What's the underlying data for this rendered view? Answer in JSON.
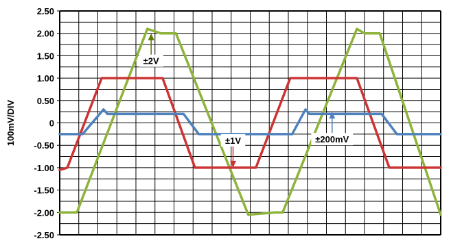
{
  "chart_data": {
    "type": "line",
    "title": "",
    "xlabel": "",
    "ylabel": "100mV/DIV",
    "ylim": [
      -2.5,
      2.5
    ],
    "y_ticks": [
      "2.50",
      "2.00",
      "1.50",
      "1.00",
      "0.50",
      "0",
      "-0.50",
      "-1.00",
      "-1.50",
      "-2.00",
      "-2.50"
    ],
    "x_divisions": 20,
    "xlim": [
      0,
      20
    ],
    "grid": true,
    "series": [
      {
        "color": "#8db33a",
        "x": [
          0,
          0.5,
          0.9,
          4.6,
          5.3,
          6.1,
          9.9,
          11.3,
          11.7,
          15.6,
          16.0,
          16.4,
          16.8,
          20
        ],
        "y": [
          -2.0,
          -2.0,
          -2.0,
          2.1,
          2.0,
          2.0,
          -2.05,
          -2.0,
          -2.0,
          2.1,
          2.0,
          2.0,
          2.0,
          -2.05
        ]
      },
      {
        "color": "#cc3333",
        "x": [
          0,
          0.4,
          2.2,
          5.4,
          7.1,
          10.3,
          12.1,
          15.6,
          17.3,
          20
        ],
        "y": [
          -1.05,
          -1.0,
          1.0,
          1.0,
          -1.0,
          -1.0,
          1.0,
          1.0,
          -1.0,
          -1.0
        ]
      },
      {
        "color": "#4f81bd",
        "x": [
          0,
          1.2,
          2.3,
          2.5,
          6.5,
          7.3,
          12.2,
          12.9,
          13.1,
          16.9,
          17.7,
          20
        ],
        "y": [
          -0.25,
          -0.25,
          0.3,
          0.2,
          0.2,
          -0.25,
          -0.25,
          0.3,
          0.2,
          0.2,
          -0.25,
          -0.25
        ]
      }
    ],
    "annotations": [
      {
        "text": "±2V",
        "series": 0,
        "arrow_tip": [
          4.8,
          2.0
        ],
        "direction": "up",
        "color": "#5b7a00"
      },
      {
        "text": "±1V",
        "series": 1,
        "arrow_tip": [
          9.1,
          -1.0
        ],
        "direction": "down",
        "color": "#cc3333"
      },
      {
        "text": "±200mV",
        "series": 2,
        "arrow_tip": [
          14.3,
          0.25
        ],
        "direction": "up",
        "color": "#4f81bd"
      }
    ]
  }
}
